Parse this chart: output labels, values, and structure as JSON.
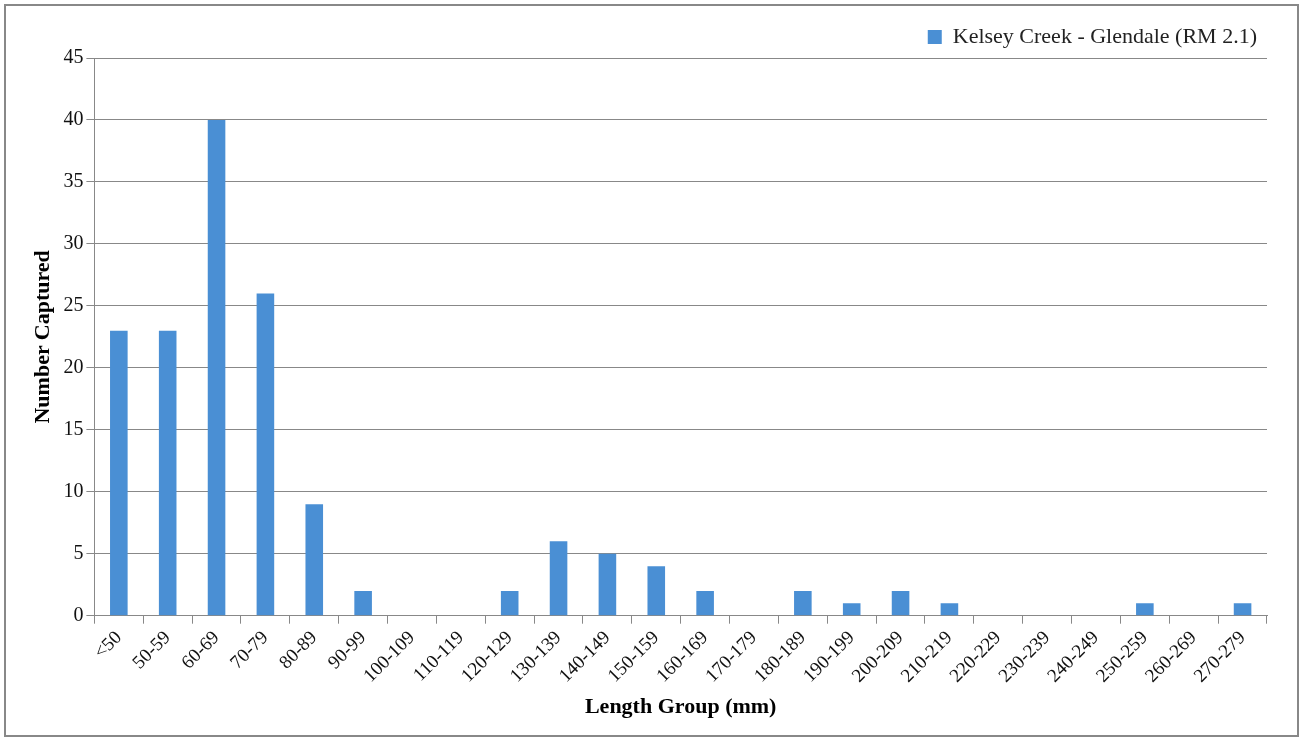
{
  "chart_data": {
    "type": "bar",
    "xlabel": "Length Group (mm)",
    "ylabel": "Number Captured",
    "categories": [
      "<50",
      "50-59",
      "60-69",
      "70-79",
      "80-89",
      "90-99",
      "100-109",
      "110-119",
      "120-129",
      "130-139",
      "140-149",
      "150-159",
      "160-169",
      "170-179",
      "180-189",
      "190-199",
      "200-209",
      "210-219",
      "220-229",
      "230-239",
      "240-249",
      "250-259",
      "260-269",
      "270-279"
    ],
    "series": [
      {
        "name": "Kelsey Creek - Glendale (RM 2.1)",
        "color": "#4a8fd4",
        "values": [
          23,
          23,
          40,
          26,
          9,
          2,
          0,
          0,
          2,
          6,
          5,
          4,
          2,
          0,
          2,
          1,
          2,
          1,
          0,
          0,
          0,
          1,
          0,
          1
        ]
      }
    ],
    "ylim": [
      0,
      45
    ],
    "yticks": [
      0,
      5,
      10,
      15,
      20,
      25,
      30,
      35,
      40,
      45
    ],
    "grid": "y",
    "legend": "top right"
  }
}
